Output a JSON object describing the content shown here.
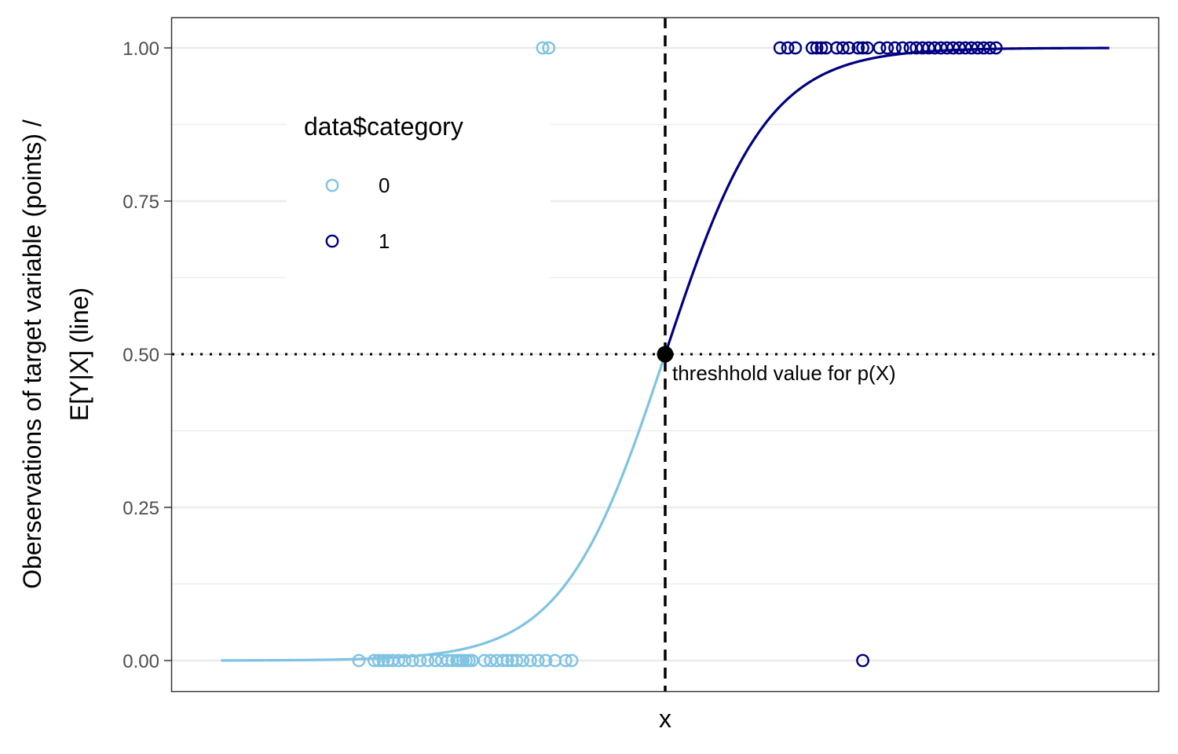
{
  "chart_data": {
    "type": "scatter",
    "title": "",
    "xlabel": "x",
    "ylabel_lines": [
      "Oberservations of target variable (points) /",
      "E[Y|X] (line)"
    ],
    "x_tick_labels": [],
    "y_ticks": [
      0.0,
      0.25,
      0.5,
      0.75,
      1.0
    ],
    "y_tick_labels": [
      "0.00",
      "0.25",
      "0.50",
      "0.75",
      "1.00"
    ],
    "xlim": [
      -3.22,
      3.22
    ],
    "ylim": [
      -0.05,
      1.05
    ],
    "grid": true,
    "legend": {
      "title": "data$category",
      "placement": "top-left-inside",
      "entries": [
        {
          "label": "0",
          "color": "#7ec3e2"
        },
        {
          "label": "1",
          "color": "#000080"
        }
      ]
    },
    "curve": {
      "formula": "logistic",
      "slope": 3.0,
      "x_min": -2.9,
      "x_max": 2.9,
      "color_below_threshold": "#7ec3e2",
      "color_above_threshold": "#000080"
    },
    "threshold": {
      "x": 0,
      "y": 0.5,
      "label": "threshhold value for p(X)"
    },
    "series": [
      {
        "name": "0",
        "color": "#7ec3e2",
        "points": [
          {
            "x": -0.8,
            "y": 1
          },
          {
            "x": -0.76,
            "y": 1
          },
          {
            "x": -2.0,
            "y": 0
          },
          {
            "x": -1.9,
            "y": 0
          },
          {
            "x": -1.87,
            "y": 0
          },
          {
            "x": -1.84,
            "y": 0
          },
          {
            "x": -1.81,
            "y": 0
          },
          {
            "x": -1.78,
            "y": 0
          },
          {
            "x": -1.74,
            "y": 0
          },
          {
            "x": -1.7,
            "y": 0
          },
          {
            "x": -1.65,
            "y": 0
          },
          {
            "x": -1.6,
            "y": 0
          },
          {
            "x": -1.55,
            "y": 0
          },
          {
            "x": -1.5,
            "y": 0
          },
          {
            "x": -1.46,
            "y": 0
          },
          {
            "x": -1.42,
            "y": 0
          },
          {
            "x": -1.39,
            "y": 0
          },
          {
            "x": -1.36,
            "y": 0
          },
          {
            "x": -1.34,
            "y": 0
          },
          {
            "x": -1.32,
            "y": 0
          },
          {
            "x": -1.3,
            "y": 0
          },
          {
            "x": -1.28,
            "y": 0
          },
          {
            "x": -1.26,
            "y": 0
          },
          {
            "x": -1.18,
            "y": 0
          },
          {
            "x": -1.14,
            "y": 0
          },
          {
            "x": -1.1,
            "y": 0
          },
          {
            "x": -1.06,
            "y": 0
          },
          {
            "x": -1.03,
            "y": 0
          },
          {
            "x": -1.0,
            "y": 0
          },
          {
            "x": -0.97,
            "y": 0
          },
          {
            "x": -0.93,
            "y": 0
          },
          {
            "x": -0.88,
            "y": 0
          },
          {
            "x": -0.83,
            "y": 0
          },
          {
            "x": -0.78,
            "y": 0
          },
          {
            "x": -0.72,
            "y": 0
          },
          {
            "x": -0.65,
            "y": 0
          },
          {
            "x": -0.61,
            "y": 0
          }
        ]
      },
      {
        "name": "1",
        "color": "#000080",
        "points": [
          {
            "x": 1.29,
            "y": 0
          },
          {
            "x": 0.75,
            "y": 1
          },
          {
            "x": 0.8,
            "y": 1
          },
          {
            "x": 0.85,
            "y": 1
          },
          {
            "x": 0.96,
            "y": 1
          },
          {
            "x": 0.99,
            "y": 1
          },
          {
            "x": 1.02,
            "y": 1
          },
          {
            "x": 1.05,
            "y": 1
          },
          {
            "x": 1.12,
            "y": 1
          },
          {
            "x": 1.16,
            "y": 1
          },
          {
            "x": 1.2,
            "y": 1
          },
          {
            "x": 1.26,
            "y": 1
          },
          {
            "x": 1.29,
            "y": 1
          },
          {
            "x": 1.32,
            "y": 1
          },
          {
            "x": 1.4,
            "y": 1
          },
          {
            "x": 1.45,
            "y": 1
          },
          {
            "x": 1.5,
            "y": 1
          },
          {
            "x": 1.55,
            "y": 1
          },
          {
            "x": 1.6,
            "y": 1
          },
          {
            "x": 1.64,
            "y": 1
          },
          {
            "x": 1.68,
            "y": 1
          },
          {
            "x": 1.72,
            "y": 1
          },
          {
            "x": 1.76,
            "y": 1
          },
          {
            "x": 1.8,
            "y": 1
          },
          {
            "x": 1.84,
            "y": 1
          },
          {
            "x": 1.88,
            "y": 1
          },
          {
            "x": 1.92,
            "y": 1
          },
          {
            "x": 1.96,
            "y": 1
          },
          {
            "x": 2.0,
            "y": 1
          },
          {
            "x": 2.04,
            "y": 1
          },
          {
            "x": 2.08,
            "y": 1
          },
          {
            "x": 2.12,
            "y": 1
          },
          {
            "x": 2.16,
            "y": 1
          }
        ]
      }
    ]
  }
}
